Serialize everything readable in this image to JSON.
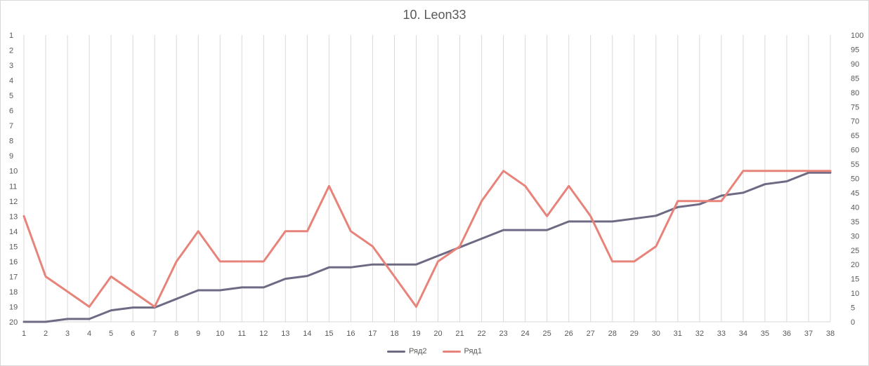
{
  "chart_data": {
    "type": "line",
    "title": "10. Leon33",
    "x": [
      1,
      2,
      3,
      4,
      5,
      6,
      7,
      8,
      9,
      10,
      11,
      12,
      13,
      14,
      15,
      16,
      17,
      18,
      19,
      20,
      21,
      22,
      23,
      24,
      25,
      26,
      27,
      28,
      29,
      30,
      31,
      32,
      33,
      34,
      35,
      36,
      37,
      38
    ],
    "left_axis": {
      "ticks": [
        1,
        2,
        3,
        4,
        5,
        6,
        7,
        8,
        9,
        10,
        11,
        12,
        13,
        14,
        15,
        16,
        17,
        18,
        19,
        20
      ],
      "reversed": true,
      "ylim": [
        1,
        20
      ]
    },
    "right_axis": {
      "ticks": [
        0,
        5,
        10,
        15,
        20,
        25,
        30,
        35,
        40,
        45,
        50,
        55,
        60,
        65,
        70,
        75,
        80,
        85,
        90,
        95,
        100
      ],
      "ylim": [
        0,
        100
      ]
    },
    "series": [
      {
        "name": "Ряд2",
        "axis": "right",
        "color": "#6e6a84",
        "values": [
          0,
          0,
          1,
          1,
          4,
          5,
          5,
          8,
          11,
          11,
          12,
          12,
          15,
          16,
          19,
          19,
          20,
          20,
          20,
          23,
          26,
          29,
          32,
          32,
          32,
          35,
          35,
          35,
          36,
          37,
          40,
          41,
          44,
          45,
          48,
          49,
          52,
          52
        ]
      },
      {
        "name": "Ряд1",
        "axis": "left",
        "color": "#e8837a",
        "values": [
          13,
          17,
          18,
          19,
          17,
          18,
          19,
          16,
          14,
          16,
          16,
          16,
          14,
          14,
          11,
          14,
          15,
          17,
          19,
          16,
          15,
          12,
          10,
          11,
          13,
          11,
          13,
          16,
          16,
          15,
          12,
          12,
          12,
          10,
          10,
          10,
          10,
          10
        ]
      }
    ],
    "legend": [
      "Ряд2",
      "Ряд1"
    ],
    "legend_position": "bottom",
    "grid": "vertical"
  }
}
